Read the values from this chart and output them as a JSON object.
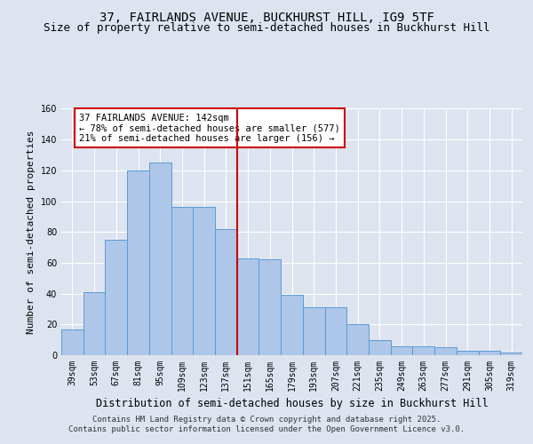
{
  "title_line1": "37, FAIRLANDS AVENUE, BUCKHURST HILL, IG9 5TF",
  "title_line2": "Size of property relative to semi-detached houses in Buckhurst Hill",
  "xlabel": "Distribution of semi-detached houses by size in Buckhurst Hill",
  "ylabel": "Number of semi-detached properties",
  "footer_line1": "Contains HM Land Registry data © Crown copyright and database right 2025.",
  "footer_line2": "Contains public sector information licensed under the Open Government Licence v3.0.",
  "annotation_line1": "37 FAIRLANDS AVENUE: 142sqm",
  "annotation_line2": "← 78% of semi-detached houses are smaller (577)",
  "annotation_line3": "21% of semi-detached houses are larger (156) →",
  "bar_values": [
    17,
    41,
    75,
    120,
    125,
    96,
    96,
    82,
    63,
    62,
    39,
    31,
    31,
    20,
    10,
    6,
    6,
    5,
    3,
    3,
    2
  ],
  "categories": [
    "39sqm",
    "53sqm",
    "67sqm",
    "81sqm",
    "95sqm",
    "109sqm",
    "123sqm",
    "137sqm",
    "151sqm",
    "165sqm",
    "179sqm",
    "193sqm",
    "207sqm",
    "221sqm",
    "235sqm",
    "249sqm",
    "263sqm",
    "277sqm",
    "291sqm",
    "305sqm",
    "319sqm"
  ],
  "bar_color": "#aec6e8",
  "bar_edge_color": "#5b9bd5",
  "bar_width": 1.0,
  "ylim": [
    0,
    160
  ],
  "yticks": [
    0,
    20,
    40,
    60,
    80,
    100,
    120,
    140,
    160
  ],
  "vline_x": 7.5,
  "vline_color": "#cc0000",
  "annotation_box_color": "#cc0000",
  "bg_color": "#dde4f0",
  "plot_bg_color": "#dde4f0",
  "grid_color": "#ffffff",
  "title_fontsize": 10,
  "subtitle_fontsize": 9,
  "tick_fontsize": 7,
  "ylabel_fontsize": 8,
  "xlabel_fontsize": 8.5,
  "annotation_fontsize": 7.5,
  "footer_fontsize": 6.5
}
